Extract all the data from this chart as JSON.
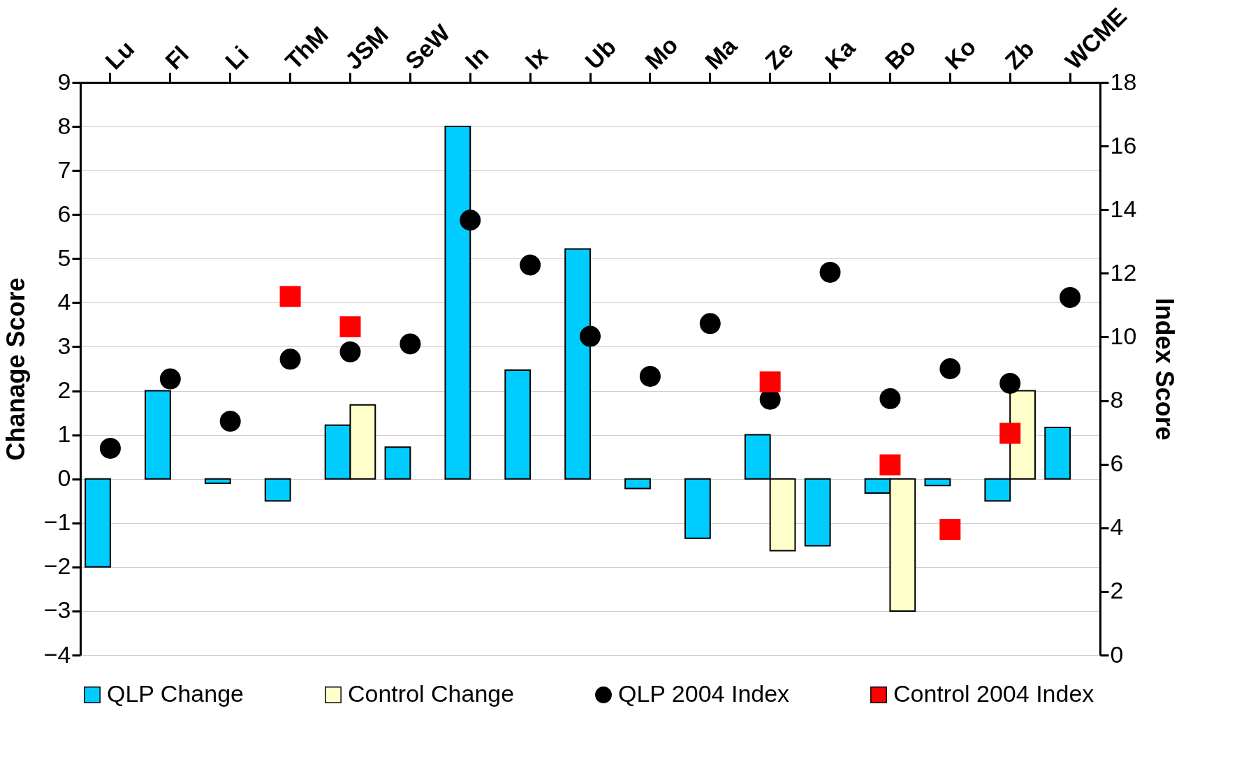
{
  "chart_data": {
    "type": "bar",
    "categories": [
      "Lu",
      "Fl",
      "Li",
      "ThM",
      "JSM",
      "SeW",
      "In",
      "Ix",
      "Ub",
      "Mo",
      "Ma",
      "Ze",
      "Ka",
      "Bo",
      "Ko",
      "Zb",
      "WCME"
    ],
    "series": [
      {
        "name": "QLP Change",
        "color": "#00ccff",
        "values": [
          -2,
          2,
          -0.1,
          -0.5,
          1.22,
          0.72,
          8,
          2.47,
          5.22,
          -0.22,
          -1.35,
          1.0,
          -1.52,
          -0.32,
          -0.15,
          -0.5,
          1.17
        ]
      },
      {
        "name": "Control Change",
        "color": "#ffffcc",
        "values": [
          null,
          null,
          null,
          null,
          1.68,
          null,
          null,
          null,
          null,
          null,
          null,
          -1.63,
          null,
          -3,
          null,
          2.0,
          null
        ]
      },
      {
        "name": "QLP 2004 Index",
        "type": "scatter",
        "axis": "y2",
        "marker": "circle",
        "color": "#000000",
        "values": [
          6.5,
          8.68,
          7.35,
          9.3,
          9.53,
          9.78,
          13.67,
          12.26,
          10.02,
          8.76,
          10.42,
          8.04,
          12.03,
          8.06,
          9.0,
          8.54,
          11.24
        ]
      },
      {
        "name": "Control 2004 Index",
        "type": "scatter",
        "axis": "y2",
        "marker": "square",
        "color": "#ff0000",
        "values": [
          null,
          null,
          null,
          11.27,
          10.32,
          null,
          null,
          null,
          null,
          null,
          null,
          8.59,
          null,
          5.98,
          3.95,
          6.97,
          null
        ]
      }
    ],
    "ylabel": "Chanage Score",
    "y2label": "Index Score",
    "ylim": [
      -4,
      9
    ],
    "yticks": [
      -4,
      -3,
      -2,
      -1,
      0,
      1,
      2,
      3,
      4,
      5,
      6,
      7,
      8,
      9
    ],
    "y2lim": [
      0,
      18
    ],
    "y2ticks": [
      0,
      2,
      4,
      6,
      8,
      10,
      12,
      14,
      16,
      18
    ],
    "grid": "y",
    "legend": "bottom"
  }
}
